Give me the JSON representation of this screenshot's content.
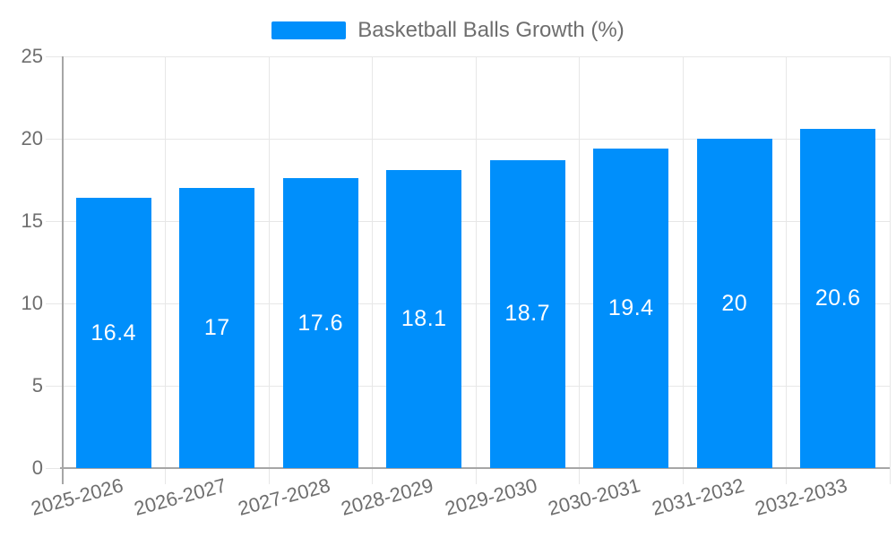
{
  "legend": {
    "label": "Basketball Balls Growth (%)"
  },
  "chart_data": {
    "type": "bar",
    "title": "Basketball Balls Growth (%)",
    "categories": [
      "2025-2026",
      "2026-2027",
      "2027-2028",
      "2028-2029",
      "2029-2030",
      "2030-2031",
      "2031-2032",
      "2032-2033"
    ],
    "series": [
      {
        "name": "Basketball Balls Growth (%)",
        "values": [
          16.4,
          17,
          17.6,
          18.1,
          18.7,
          19.4,
          20,
          20.6
        ]
      }
    ],
    "data_labels": [
      "16.4",
      "17",
      "17.6",
      "18.1",
      "18.7",
      "19.4",
      "20",
      "20.6"
    ],
    "xlabel": "",
    "ylabel": "",
    "ylim": [
      0,
      25
    ],
    "yticks": [
      0,
      5,
      10,
      15,
      20,
      25
    ],
    "grid": true,
    "legend_position": "top",
    "x_label_rotation": -15
  },
  "colors": {
    "bar": "#008FFB",
    "grid": "#e7e7e7",
    "axis": "#a6a6a6",
    "tick_text": "#6e6e6e",
    "legend_text": "#6e6e6e",
    "data_label": "#ffffff",
    "background": "#ffffff"
  }
}
